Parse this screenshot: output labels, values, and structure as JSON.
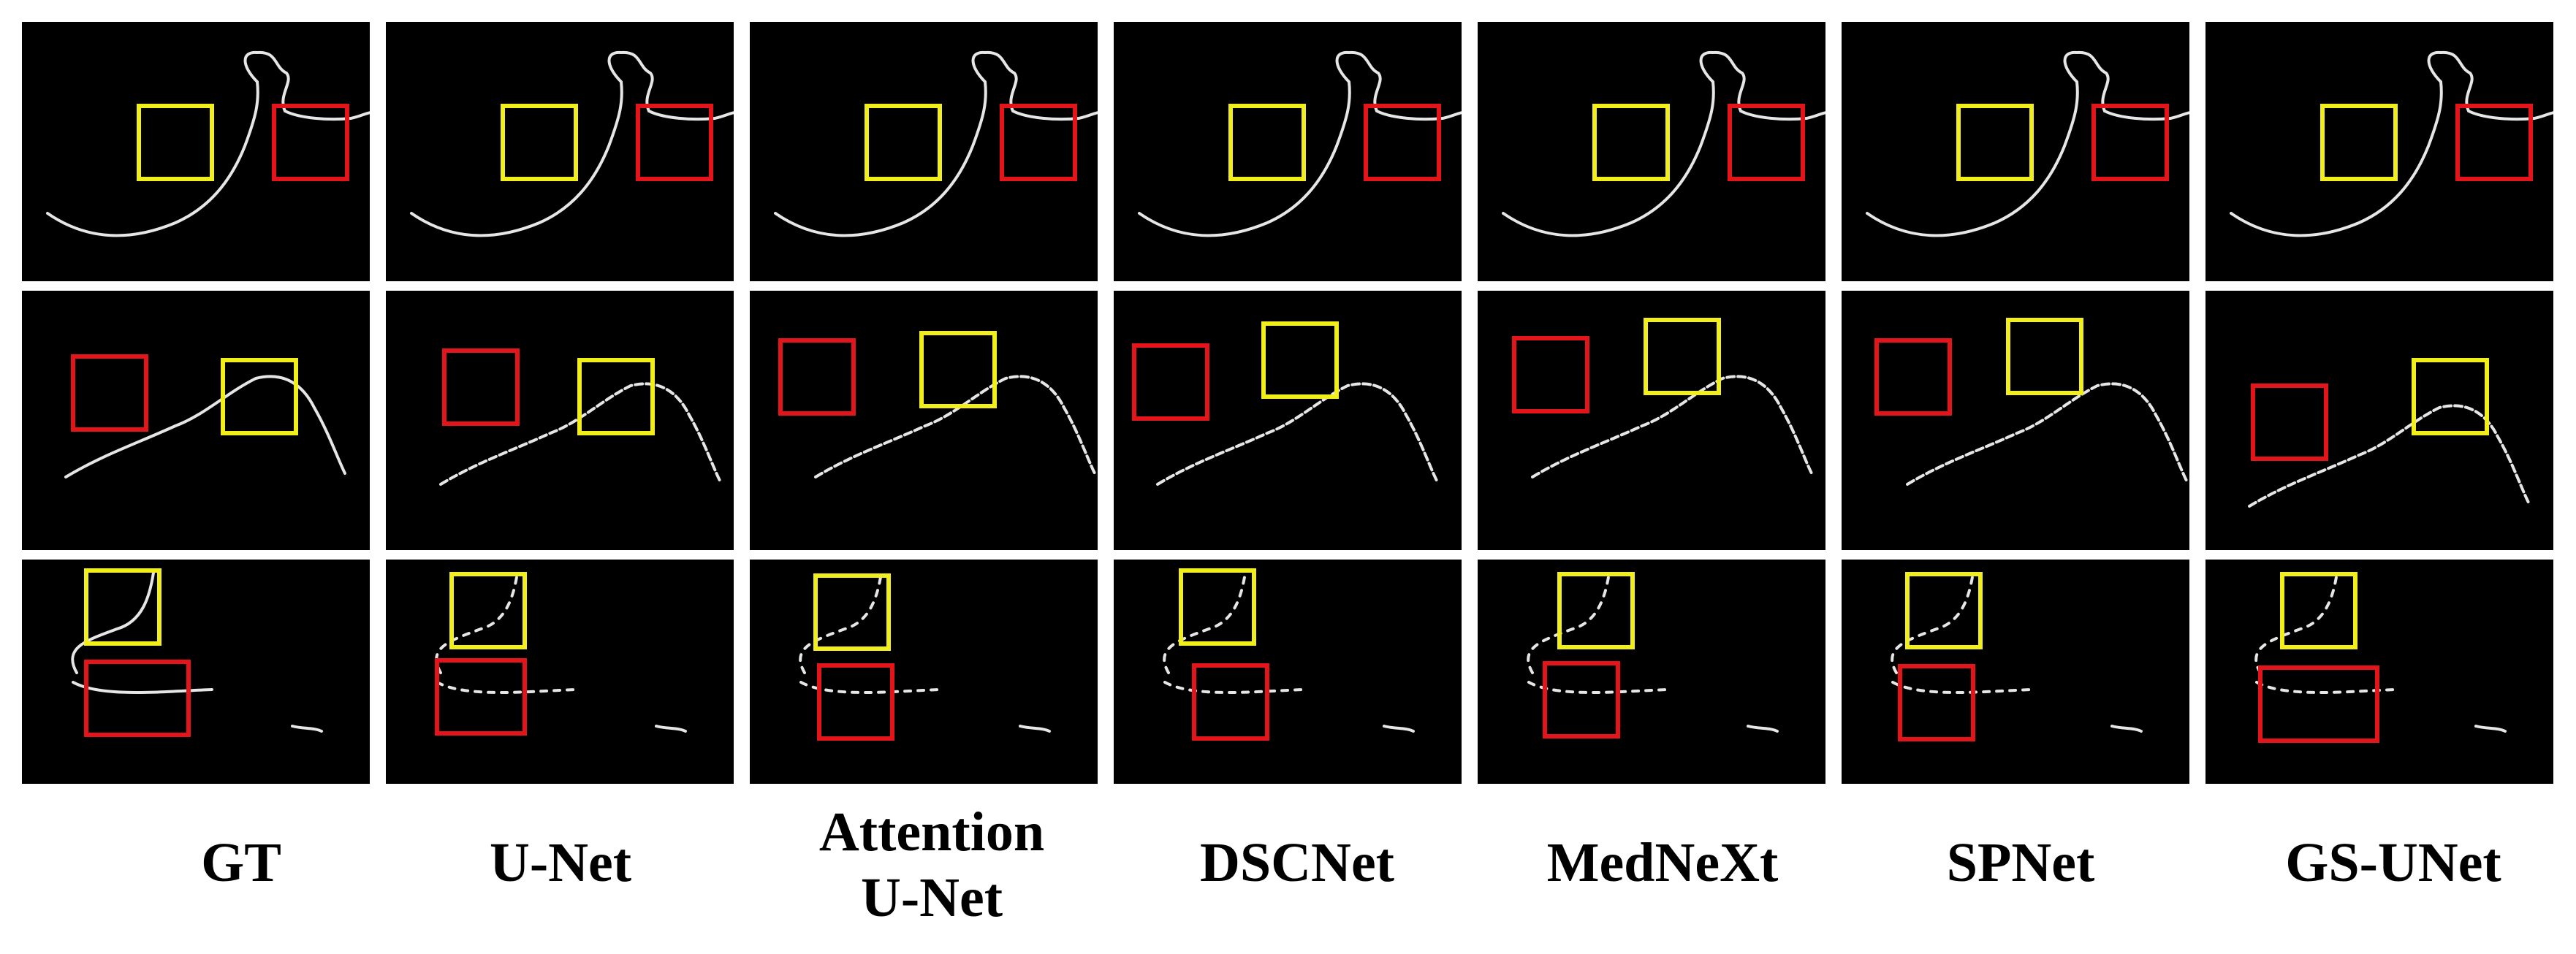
{
  "methods": [
    "GT",
    "U-Net",
    "Attention U-Net",
    "DSCNet",
    "MedNeXt",
    "SPNet",
    "GS-UNet"
  ],
  "labels": {
    "m0": "GT",
    "m1": "U-Net",
    "m2a": "Attention",
    "m2b": "U-Net",
    "m3": "DSCNet",
    "m4": "MedNeXt",
    "m5": "SPNet",
    "m6": "GS-UNet"
  },
  "colors": {
    "background": "#ffffff",
    "panel": "#000000",
    "vessel": "#e6e6e6",
    "box_yellow": "#f2ee1c",
    "box_red": "#e3151b"
  }
}
